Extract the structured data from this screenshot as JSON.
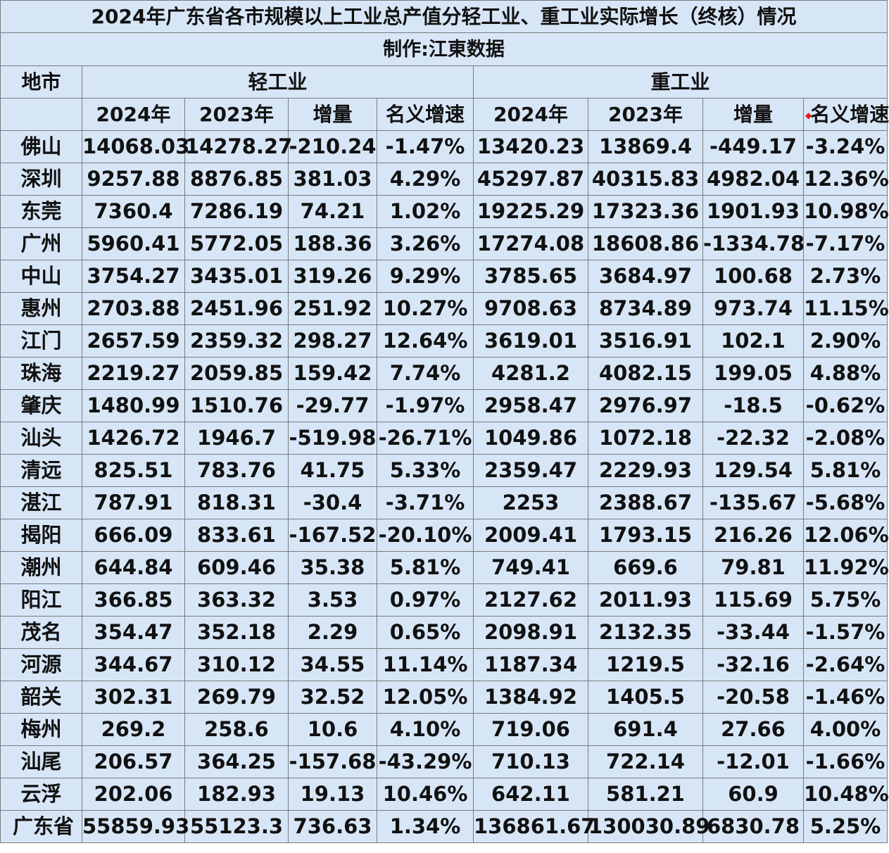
{
  "title": "2024年广东省各市规模以上工业总产值分轻工业、重工业实际增长（终核）情况",
  "maker": "制作:江東数据",
  "header": {
    "city_col": "地市",
    "light_group": "轻工业",
    "heavy_group": "重工业",
    "sub_columns": [
      "2024年",
      "2023年",
      "增量",
      "名义增速",
      "2024年",
      "2023年",
      "增量",
      "名义增速"
    ]
  },
  "colors": {
    "background": "#d7e6f7",
    "negative": "#e8141c",
    "text": "#111111",
    "border": "#7a7a7a"
  },
  "rows": [
    {
      "city": "佛山",
      "values": [
        "14068.03",
        "14278.27",
        "-210.24",
        "-1.47%",
        "13420.23",
        "13869.4",
        "-449.17",
        "-3.24%"
      ]
    },
    {
      "city": "深圳",
      "values": [
        "9257.88",
        "8876.85",
        "381.03",
        "4.29%",
        "45297.87",
        "40315.83",
        "4982.04",
        "12.36%"
      ]
    },
    {
      "city": "东莞",
      "values": [
        "7360.4",
        "7286.19",
        "74.21",
        "1.02%",
        "19225.29",
        "17323.36",
        "1901.93",
        "10.98%"
      ]
    },
    {
      "city": "广州",
      "values": [
        "5960.41",
        "5772.05",
        "188.36",
        "3.26%",
        "17274.08",
        "18608.86",
        "-1334.78",
        "-7.17%"
      ]
    },
    {
      "city": "中山",
      "values": [
        "3754.27",
        "3435.01",
        "319.26",
        "9.29%",
        "3785.65",
        "3684.97",
        "100.68",
        "2.73%"
      ]
    },
    {
      "city": "惠州",
      "values": [
        "2703.88",
        "2451.96",
        "251.92",
        "10.27%",
        "9708.63",
        "8734.89",
        "973.74",
        "11.15%"
      ]
    },
    {
      "city": "江门",
      "values": [
        "2657.59",
        "2359.32",
        "298.27",
        "12.64%",
        "3619.01",
        "3516.91",
        "102.1",
        "2.90%"
      ]
    },
    {
      "city": "珠海",
      "values": [
        "2219.27",
        "2059.85",
        "159.42",
        "7.74%",
        "4281.2",
        "4082.15",
        "199.05",
        "4.88%"
      ]
    },
    {
      "city": "肇庆",
      "values": [
        "1480.99",
        "1510.76",
        "-29.77",
        "-1.97%",
        "2958.47",
        "2976.97",
        "-18.5",
        "-0.62%"
      ]
    },
    {
      "city": "汕头",
      "values": [
        "1426.72",
        "1946.7",
        "-519.98",
        "-26.71%",
        "1049.86",
        "1072.18",
        "-22.32",
        "-2.08%"
      ]
    },
    {
      "city": "清远",
      "values": [
        "825.51",
        "783.76",
        "41.75",
        "5.33%",
        "2359.47",
        "2229.93",
        "129.54",
        "5.81%"
      ]
    },
    {
      "city": "湛江",
      "values": [
        "787.91",
        "818.31",
        "-30.4",
        "-3.71%",
        "2253",
        "2388.67",
        "-135.67",
        "-5.68%"
      ]
    },
    {
      "city": "揭阳",
      "values": [
        "666.09",
        "833.61",
        "-167.52",
        "-20.10%",
        "2009.41",
        "1793.15",
        "216.26",
        "12.06%"
      ]
    },
    {
      "city": "潮州",
      "values": [
        "644.84",
        "609.46",
        "35.38",
        "5.81%",
        "749.41",
        "669.6",
        "79.81",
        "11.92%"
      ]
    },
    {
      "city": "阳江",
      "values": [
        "366.85",
        "363.32",
        "3.53",
        "0.97%",
        "2127.62",
        "2011.93",
        "115.69",
        "5.75%"
      ]
    },
    {
      "city": "茂名",
      "values": [
        "354.47",
        "352.18",
        "2.29",
        "0.65%",
        "2098.91",
        "2132.35",
        "-33.44",
        "-1.57%"
      ]
    },
    {
      "city": "河源",
      "values": [
        "344.67",
        "310.12",
        "34.55",
        "11.14%",
        "1187.34",
        "1219.5",
        "-32.16",
        "-2.64%"
      ]
    },
    {
      "city": "韶关",
      "values": [
        "302.31",
        "269.79",
        "32.52",
        "12.05%",
        "1384.92",
        "1405.5",
        "-20.58",
        "-1.46%"
      ]
    },
    {
      "city": "梅州",
      "values": [
        "269.2",
        "258.6",
        "10.6",
        "4.10%",
        "719.06",
        "691.4",
        "27.66",
        "4.00%"
      ]
    },
    {
      "city": "汕尾",
      "values": [
        "206.57",
        "364.25",
        "-157.68",
        "-43.29%",
        "710.13",
        "722.14",
        "-12.01",
        "-1.66%"
      ]
    },
    {
      "city": "云浮",
      "values": [
        "202.06",
        "182.93",
        "19.13",
        "10.46%",
        "642.11",
        "581.21",
        "60.9",
        "10.48%"
      ]
    }
  ],
  "total": {
    "city": "广东省",
    "values": [
      "55859.93",
      "55123.3",
      "736.63",
      "1.34%",
      "136861.67",
      "130030.89",
      "6830.78",
      "5.25%"
    ]
  }
}
